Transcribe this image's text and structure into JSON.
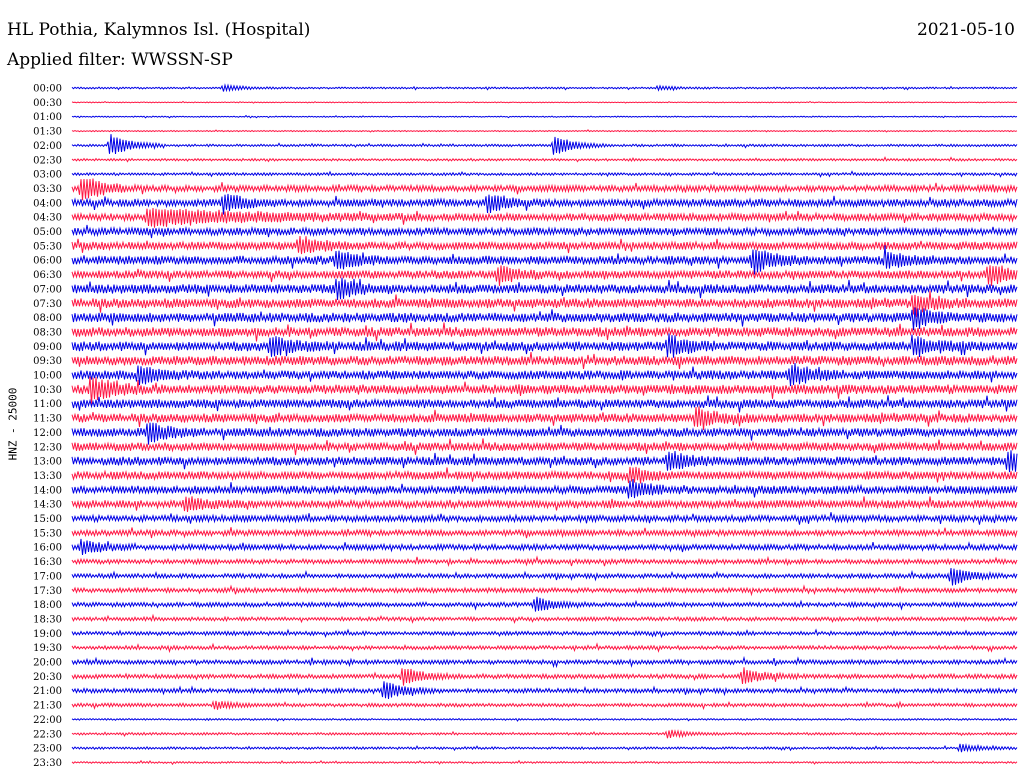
{
  "header": {
    "title": "HL Pothia, Kalymnos Isl. (Hospital)",
    "date": "2021-05-10",
    "filter": "Applied filter: WWSSN-SP"
  },
  "colors": {
    "odd": "#0000e6",
    "even": "#ff1744"
  },
  "chart_data": {
    "type": "line",
    "title": "HL Pothia, Kalymnos Isl. (Hospital)",
    "ylabel": "HNZ - 25000",
    "tick_labels": [
      "00:00",
      "00:30",
      "01:00",
      "01:30",
      "02:00",
      "02:30",
      "03:00",
      "03:30",
      "04:00",
      "04:30",
      "05:00",
      "05:30",
      "06:00",
      "06:30",
      "07:00",
      "07:30",
      "08:00",
      "08:30",
      "09:00",
      "09:30",
      "10:00",
      "10:30",
      "11:00",
      "11:30",
      "12:00",
      "12:30",
      "13:00",
      "13:30",
      "14:00",
      "14:30",
      "15:00",
      "15:30",
      "16:00",
      "16:30",
      "17:00",
      "17:30",
      "18:00",
      "18:30",
      "19:00",
      "19:30",
      "20:00",
      "20:30",
      "21:00",
      "21:30",
      "22:00",
      "22:30",
      "23:00",
      "23:30"
    ],
    "trace_amplitude": [
      0.6,
      0.3,
      0.4,
      0.4,
      0.8,
      0.8,
      0.9,
      2.2,
      2.6,
      2.6,
      2.6,
      2.8,
      3.0,
      2.8,
      3.2,
      3.3,
      3.3,
      3.3,
      3.3,
      3.3,
      3.1,
      3.3,
      3.0,
      3.1,
      3.0,
      2.9,
      3.0,
      2.8,
      2.8,
      2.7,
      2.2,
      2.0,
      1.9,
      1.6,
      1.5,
      1.6,
      1.5,
      1.3,
      1.3,
      1.3,
      1.5,
      1.5,
      1.5,
      1.2,
      0.6,
      0.8,
      0.8,
      0.6
    ],
    "events": [
      {
        "trace": "00:00",
        "t": 0.16,
        "amp": 3
      },
      {
        "trace": "00:00",
        "t": 0.62,
        "amp": 2
      },
      {
        "trace": "02:00",
        "t": 0.04,
        "amp": 12
      },
      {
        "trace": "02:00",
        "t": 0.51,
        "amp": 10
      },
      {
        "trace": "03:30",
        "t": 0.01,
        "amp": 13
      },
      {
        "trace": "04:00",
        "t": 0.16,
        "amp": 9
      },
      {
        "trace": "04:00",
        "t": 0.44,
        "amp": 9
      },
      {
        "trace": "04:30",
        "t": 0.08,
        "amp": 8,
        "len": 0.1
      },
      {
        "trace": "05:30",
        "t": 0.24,
        "amp": 9
      },
      {
        "trace": "06:00",
        "t": 0.28,
        "amp": 9
      },
      {
        "trace": "06:00",
        "t": 0.72,
        "amp": 12
      },
      {
        "trace": "06:00",
        "t": 0.86,
        "amp": 8
      },
      {
        "trace": "06:30",
        "t": 0.45,
        "amp": 9
      },
      {
        "trace": "06:30",
        "t": 0.97,
        "amp": 11
      },
      {
        "trace": "07:00",
        "t": 0.28,
        "amp": 9
      },
      {
        "trace": "07:30",
        "t": 0.89,
        "amp": 8
      },
      {
        "trace": "08:00",
        "t": 0.89,
        "amp": 10
      },
      {
        "trace": "09:00",
        "t": 0.21,
        "amp": 9
      },
      {
        "trace": "09:00",
        "t": 0.63,
        "amp": 10
      },
      {
        "trace": "09:00",
        "t": 0.89,
        "amp": 9
      },
      {
        "trace": "10:00",
        "t": 0.07,
        "amp": 9
      },
      {
        "trace": "10:00",
        "t": 0.76,
        "amp": 11
      },
      {
        "trace": "10:30",
        "t": 0.02,
        "amp": 13
      },
      {
        "trace": "11:30",
        "t": 0.66,
        "amp": 10
      },
      {
        "trace": "12:00",
        "t": 0.08,
        "amp": 10
      },
      {
        "trace": "13:00",
        "t": 0.63,
        "amp": 9
      },
      {
        "trace": "13:00",
        "t": 0.99,
        "amp": 12
      },
      {
        "trace": "13:30",
        "t": 0.59,
        "amp": 8
      },
      {
        "trace": "14:00",
        "t": 0.59,
        "amp": 9
      },
      {
        "trace": "14:30",
        "t": 0.12,
        "amp": 7
      },
      {
        "trace": "16:00",
        "t": 0.01,
        "amp": 7
      },
      {
        "trace": "17:00",
        "t": 0.93,
        "amp": 9
      },
      {
        "trace": "18:00",
        "t": 0.49,
        "amp": 8
      },
      {
        "trace": "20:30",
        "t": 0.35,
        "amp": 9
      },
      {
        "trace": "20:30",
        "t": 0.71,
        "amp": 8
      },
      {
        "trace": "21:00",
        "t": 0.33,
        "amp": 9
      },
      {
        "trace": "21:30",
        "t": 0.15,
        "amp": 4
      },
      {
        "trace": "22:30",
        "t": 0.63,
        "amp": 4
      },
      {
        "trace": "23:00",
        "t": 0.94,
        "amp": 4
      }
    ],
    "grid": false,
    "legend": "none"
  }
}
